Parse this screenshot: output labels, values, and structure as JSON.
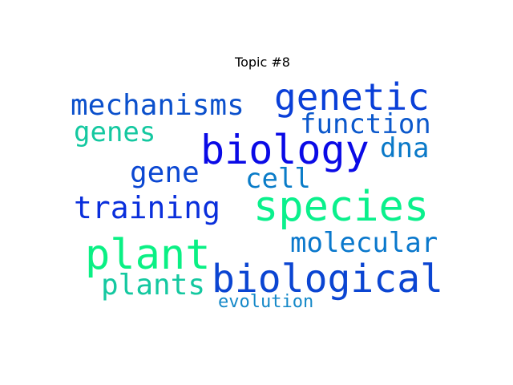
{
  "title": "Topic #8",
  "words": [
    {
      "text": "genetic",
      "color": "#0a3fd8"
    },
    {
      "text": "mechanisms",
      "color": "#0b50cc"
    },
    {
      "text": "function",
      "color": "#0b58cc"
    },
    {
      "text": "genes",
      "color": "#14c8a0"
    },
    {
      "text": "biology",
      "color": "#0a0ae6"
    },
    {
      "text": "dna",
      "color": "#0a79c8"
    },
    {
      "text": "gene",
      "color": "#0b47d2"
    },
    {
      "text": "cell",
      "color": "#0a7cc8"
    },
    {
      "text": "training",
      "color": "#0a2fdc"
    },
    {
      "text": "species",
      "color": "#0af08c"
    },
    {
      "text": "molecular",
      "color": "#0a78cc"
    },
    {
      "text": "plant",
      "color": "#0af084"
    },
    {
      "text": "biological",
      "color": "#0b45d2"
    },
    {
      "text": "plants",
      "color": "#14c8a0"
    },
    {
      "text": "evolution",
      "color": "#1488c8"
    }
  ]
}
